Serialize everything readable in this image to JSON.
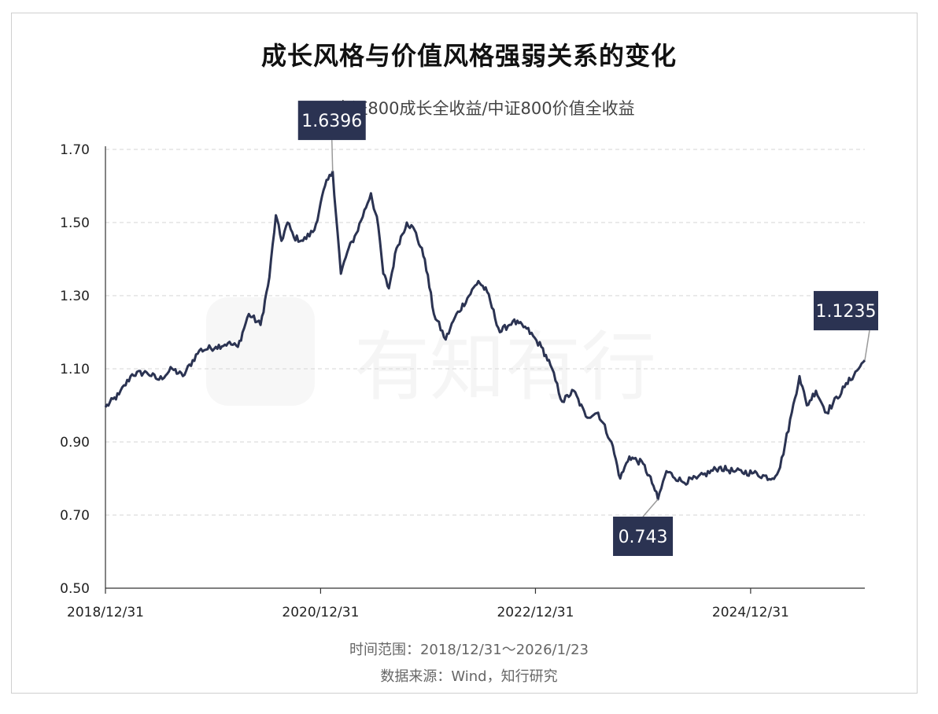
{
  "chart_data": {
    "type": "line",
    "title": "成长风格与价值风格强弱关系的变化",
    "legend": {
      "position": "top-center"
    },
    "series": [
      {
        "name": "中证800成长全收益/中证800价值全收益",
        "color": "#2b3352",
        "points": [
          [
            "2018-12-31",
            0.995
          ],
          [
            "2019-02-15",
            1.03
          ],
          [
            "2019-04-01",
            1.085
          ],
          [
            "2019-05-20",
            1.09
          ],
          [
            "2019-07-01",
            1.07
          ],
          [
            "2019-08-15",
            1.1
          ],
          [
            "2019-09-20",
            1.08
          ],
          [
            "2019-11-15",
            1.15
          ],
          [
            "2020-01-10",
            1.16
          ],
          [
            "2020-02-20",
            1.17
          ],
          [
            "2020-03-25",
            1.16
          ],
          [
            "2020-05-01",
            1.25
          ],
          [
            "2020-06-10",
            1.22
          ],
          [
            "2020-07-10",
            1.35
          ],
          [
            "2020-08-01",
            1.52
          ],
          [
            "2020-08-20",
            1.45
          ],
          [
            "2020-09-10",
            1.5
          ],
          [
            "2020-10-01",
            1.46
          ],
          [
            "2020-11-01",
            1.45
          ],
          [
            "2020-12-10",
            1.48
          ],
          [
            "2021-01-15",
            1.6
          ],
          [
            "2021-02-10",
            1.6396
          ],
          [
            "2021-03-10",
            1.36
          ],
          [
            "2021-04-01",
            1.42
          ],
          [
            "2021-05-01",
            1.47
          ],
          [
            "2021-06-20",
            1.58
          ],
          [
            "2021-07-15",
            1.49
          ],
          [
            "2021-08-01",
            1.36
          ],
          [
            "2021-08-20",
            1.32
          ],
          [
            "2021-09-15",
            1.43
          ],
          [
            "2021-10-20",
            1.5
          ],
          [
            "2021-11-15",
            1.48
          ],
          [
            "2021-12-20",
            1.4
          ],
          [
            "2022-01-20",
            1.25
          ],
          [
            "2022-03-01",
            1.18
          ],
          [
            "2022-04-01",
            1.24
          ],
          [
            "2022-06-20",
            1.34
          ],
          [
            "2022-07-20",
            1.31
          ],
          [
            "2022-09-01",
            1.2
          ],
          [
            "2022-10-15",
            1.23
          ],
          [
            "2022-12-01",
            1.21
          ],
          [
            "2023-01-20",
            1.16
          ],
          [
            "2023-02-20",
            1.11
          ],
          [
            "2023-04-01",
            1.01
          ],
          [
            "2023-05-10",
            1.04
          ],
          [
            "2023-06-20",
            0.97
          ],
          [
            "2023-08-01",
            0.98
          ],
          [
            "2023-09-15",
            0.9
          ],
          [
            "2023-10-15",
            0.8
          ],
          [
            "2023-11-15",
            0.86
          ],
          [
            "2024-01-01",
            0.84
          ],
          [
            "2024-02-05",
            0.78
          ],
          [
            "2024-02-20",
            0.743
          ],
          [
            "2024-03-20",
            0.82
          ],
          [
            "2024-05-15",
            0.79
          ],
          [
            "2024-07-01",
            0.8
          ],
          [
            "2024-09-15",
            0.83
          ],
          [
            "2024-11-01",
            0.82
          ],
          [
            "2025-01-10",
            0.815
          ],
          [
            "2025-03-15",
            0.8
          ],
          [
            "2025-04-10",
            0.83
          ],
          [
            "2025-05-20",
            0.98
          ],
          [
            "2025-06-15",
            1.08
          ],
          [
            "2025-07-10",
            1.0
          ],
          [
            "2025-08-10",
            1.04
          ],
          [
            "2025-09-15",
            0.98
          ],
          [
            "2025-11-15",
            1.05
          ],
          [
            "2026-01-23",
            1.1235
          ]
        ]
      }
    ],
    "y_axis": {
      "min": 0.5,
      "max": 1.7,
      "ticks": [
        "0.50",
        "0.70",
        "0.90",
        "1.10",
        "1.30",
        "1.50",
        "1.70"
      ]
    },
    "x_axis": {
      "min": "2018-12-31",
      "max": "2026-01-23",
      "ticks": [
        {
          "date": "2018-12-31",
          "label": "2018/12/31"
        },
        {
          "date": "2020-12-31",
          "label": "2020/12/31"
        },
        {
          "date": "2022-12-31",
          "label": "2022/12/31"
        },
        {
          "date": "2024-12-31",
          "label": "2024/12/31"
        }
      ]
    },
    "grid": "horizontal-dashed",
    "annotations": [
      {
        "date": "2021-02-10",
        "value": 0.0,
        "label": "1.6396",
        "anchor": "2021-02-10|1.6396",
        "placement": "above"
      },
      {
        "date": "2024-02-20",
        "value": 0.0,
        "label": "0.743",
        "anchor": "2024-02-20|0.743",
        "placement": "below"
      },
      {
        "date": "2026-01-23",
        "value": 0.0,
        "label": "1.1235",
        "anchor": "2026-01-23|1.1235",
        "placement": "above"
      }
    ]
  },
  "watermark": "有知有行",
  "footer": {
    "range": "时间范围：2018/12/31～2026/1/23",
    "source": "数据来源：Wind，知行研究"
  }
}
